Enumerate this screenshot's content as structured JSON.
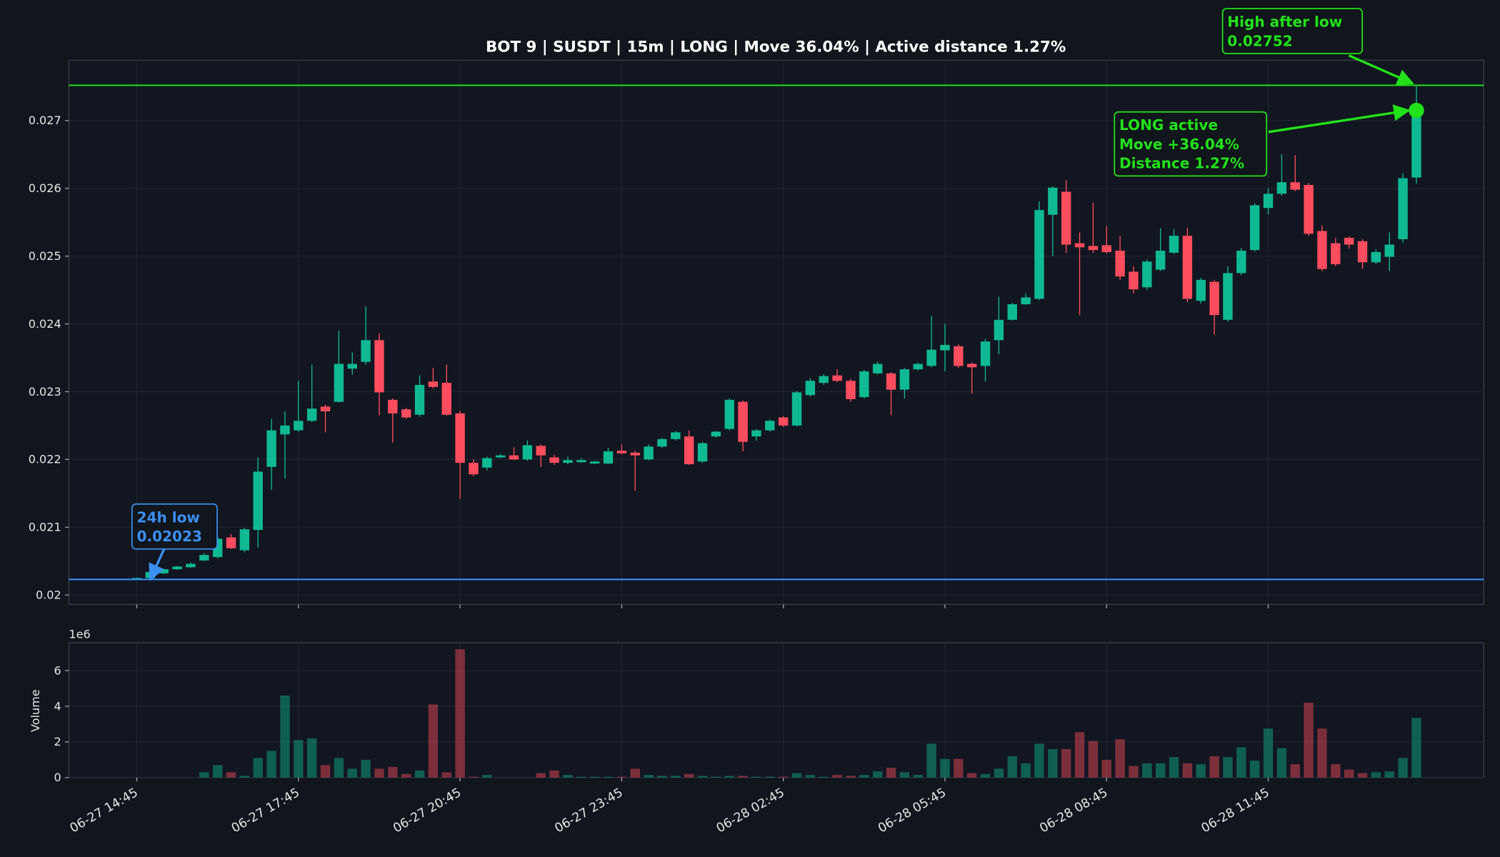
{
  "chart_data": {
    "type": "candlestick",
    "title": "BOT 9 | SUSDT | 15m | LONG | Move 36.04% | Active distance 1.27%",
    "x": [
      "06-27 14:45",
      null,
      null,
      null,
      null,
      null,
      null,
      null,
      null,
      null,
      null,
      null,
      "06-27 17:45",
      null,
      null,
      null,
      null,
      null,
      null,
      null,
      null,
      null,
      null,
      null,
      "06-27 20:45",
      null,
      null,
      null,
      null,
      null,
      null,
      null,
      null,
      null,
      null,
      null,
      "06-27 23:45",
      null,
      null,
      null,
      null,
      null,
      null,
      null,
      null,
      null,
      null,
      null,
      "06-28 02:45",
      null,
      null,
      null,
      null,
      null,
      null,
      null,
      null,
      null,
      null,
      null,
      "06-28 05:45",
      null,
      null,
      null,
      null,
      null,
      null,
      null,
      null,
      null,
      null,
      null,
      "06-28 08:45",
      null,
      null,
      null,
      null,
      null,
      null,
      null,
      null,
      null,
      null,
      null,
      "06-28 11:45",
      null,
      null,
      null,
      null,
      null,
      null,
      null,
      null,
      null,
      null,
      null
    ],
    "open": [
      0.02023,
      0.02025,
      0.02032,
      0.02038,
      0.02041,
      0.02051,
      0.02056,
      0.02085,
      0.02066,
      0.02096,
      0.02189,
      0.02237,
      0.02243,
      0.02257,
      0.02278,
      0.02285,
      0.02334,
      0.02344,
      0.02376,
      0.02288,
      0.02274,
      0.02266,
      0.02315,
      0.02313,
      0.02268,
      0.02195,
      0.02188,
      0.02203,
      0.02206,
      0.022,
      0.0222,
      0.02203,
      0.02195,
      0.02196,
      0.02194,
      0.02194,
      0.02213,
      0.0221,
      0.022,
      0.02219,
      0.0223,
      0.02234,
      0.02197,
      0.02234,
      0.02245,
      0.02285,
      0.02234,
      0.02243,
      0.02262,
      0.0225,
      0.02295,
      0.02313,
      0.02324,
      0.02316,
      0.02292,
      0.02327,
      0.02327,
      0.02303,
      0.02333,
      0.02338,
      0.02361,
      0.02367,
      0.02341,
      0.02338,
      0.02376,
      0.02406,
      0.02429,
      0.02437,
      0.02561,
      0.02595,
      0.02519,
      0.02515,
      0.02516,
      0.02508,
      0.02477,
      0.02454,
      0.0248,
      0.02505,
      0.0253,
      0.02434,
      0.02462,
      0.02406,
      0.02475,
      0.02509,
      0.02571,
      0.02592,
      0.02609,
      0.02605,
      0.02537,
      0.02519,
      0.02527,
      0.02522,
      0.02491,
      0.02499,
      0.02525,
      0.02616
    ],
    "high": [
      0.02026,
      0.02035,
      0.02039,
      0.02043,
      0.02048,
      0.02062,
      0.02086,
      0.0209,
      0.02099,
      0.02203,
      0.0226,
      0.02271,
      0.02316,
      0.0234,
      0.02281,
      0.0239,
      0.02358,
      0.02426,
      0.02386,
      0.0229,
      0.02276,
      0.02324,
      0.02335,
      0.0234,
      0.02272,
      0.022,
      0.02204,
      0.02208,
      0.02218,
      0.02228,
      0.02222,
      0.02207,
      0.02204,
      0.02202,
      0.02198,
      0.02217,
      0.02222,
      0.02213,
      0.02222,
      0.02232,
      0.02242,
      0.02243,
      0.02226,
      0.02242,
      0.0229,
      0.02287,
      0.02245,
      0.02259,
      0.02264,
      0.02301,
      0.0232,
      0.02326,
      0.02333,
      0.02319,
      0.02332,
      0.02344,
      0.02329,
      0.02335,
      0.02343,
      0.02412,
      0.024,
      0.0237,
      0.02343,
      0.02378,
      0.0244,
      0.02431,
      0.02445,
      0.02581,
      0.02603,
      0.02612,
      0.02535,
      0.02579,
      0.02544,
      0.0253,
      0.02485,
      0.02495,
      0.02541,
      0.0254,
      0.02542,
      0.02468,
      0.02465,
      0.02485,
      0.02512,
      0.02578,
      0.026,
      0.0265,
      0.02649,
      0.02608,
      0.02545,
      0.02527,
      0.02529,
      0.02525,
      0.0251,
      0.02535,
      0.02622,
      0.02752
    ],
    "low": [
      0.02023,
      0.02023,
      0.02031,
      0.02037,
      0.0204,
      0.0205,
      0.02054,
      0.02068,
      0.02063,
      0.0207,
      0.02155,
      0.02172,
      0.02241,
      0.02255,
      0.0224,
      0.02284,
      0.02325,
      0.0234,
      0.02265,
      0.02225,
      0.0226,
      0.02263,
      0.02305,
      0.02265,
      0.02142,
      0.02175,
      0.02184,
      0.02202,
      0.02199,
      0.02198,
      0.02189,
      0.02192,
      0.02193,
      0.02195,
      0.02193,
      0.02193,
      0.02208,
      0.02154,
      0.02199,
      0.02217,
      0.02228,
      0.02192,
      0.02195,
      0.02232,
      0.02243,
      0.02212,
      0.02228,
      0.02241,
      0.02248,
      0.02249,
      0.02293,
      0.0231,
      0.02314,
      0.02285,
      0.0229,
      0.02325,
      0.02265,
      0.0229,
      0.02331,
      0.02336,
      0.0233,
      0.02335,
      0.02297,
      0.02315,
      0.02355,
      0.02405,
      0.02428,
      0.02435,
      0.025,
      0.02505,
      0.02413,
      0.02505,
      0.02504,
      0.02465,
      0.02445,
      0.0245,
      0.02478,
      0.02503,
      0.02432,
      0.0243,
      0.02384,
      0.02403,
      0.02472,
      0.02507,
      0.02562,
      0.02589,
      0.02596,
      0.0253,
      0.02478,
      0.02485,
      0.02511,
      0.02481,
      0.02488,
      0.02478,
      0.0252,
      0.02607
    ],
    "close": [
      0.02025,
      0.02034,
      0.02038,
      0.02042,
      0.02046,
      0.02059,
      0.02083,
      0.02069,
      0.02097,
      0.02182,
      0.02243,
      0.0225,
      0.02257,
      0.02275,
      0.02271,
      0.02341,
      0.02341,
      0.02376,
      0.02299,
      0.02268,
      0.02262,
      0.0231,
      0.02307,
      0.02266,
      0.02195,
      0.02178,
      0.02202,
      0.02206,
      0.022,
      0.02221,
      0.02206,
      0.02195,
      0.02199,
      0.02199,
      0.02197,
      0.02212,
      0.02209,
      0.02206,
      0.02219,
      0.0223,
      0.0224,
      0.02193,
      0.02224,
      0.02241,
      0.02288,
      0.02226,
      0.02243,
      0.02257,
      0.0225,
      0.02299,
      0.02316,
      0.02323,
      0.02316,
      0.02289,
      0.0233,
      0.02341,
      0.02303,
      0.02333,
      0.02341,
      0.02362,
      0.02369,
      0.02338,
      0.02336,
      0.02374,
      0.02406,
      0.02429,
      0.02439,
      0.02568,
      0.02601,
      0.02517,
      0.02513,
      0.02509,
      0.02506,
      0.0247,
      0.02451,
      0.02492,
      0.02508,
      0.0253,
      0.02437,
      0.02465,
      0.02413,
      0.02475,
      0.02508,
      0.02575,
      0.02592,
      0.02609,
      0.02598,
      0.02533,
      0.02481,
      0.02488,
      0.02517,
      0.02491,
      0.02506,
      0.02517,
      0.02615,
      0.02715
    ],
    "volume": [
      0,
      0,
      0,
      0,
      0,
      0.3,
      0.7,
      0.3,
      0.1,
      1.1,
      1.5,
      4.6,
      2.1,
      2.2,
      0.7,
      1.1,
      0.5,
      1.0,
      0.5,
      0.6,
      0.2,
      0.4,
      4.1,
      0.3,
      7.2,
      0.05,
      0.15,
      0,
      0,
      0,
      0.25,
      0.4,
      0.15,
      0.05,
      0.05,
      0.05,
      0.05,
      0.5,
      0.15,
      0.1,
      0.1,
      0.2,
      0.1,
      0.05,
      0.1,
      0.1,
      0.05,
      0.05,
      0.05,
      0.25,
      0.15,
      0.05,
      0.15,
      0.1,
      0.15,
      0.35,
      0.55,
      0.3,
      0.15,
      1.9,
      1.05,
      1.05,
      0.25,
      0.2,
      0.5,
      1.2,
      0.8,
      1.9,
      1.6,
      1.6,
      2.55,
      2.05,
      1.0,
      2.15,
      0.65,
      0.8,
      0.8,
      1.15,
      0.8,
      0.75,
      1.2,
      1.15,
      1.7,
      0.95,
      2.75,
      1.65,
      0.75,
      4.2,
      2.75,
      0.75,
      0.45,
      0.25,
      0.3,
      0.35,
      1.1,
      3.35
    ],
    "up_color": "#0fb993",
    "down_color": "#ff4d5e",
    "ylim": [
      0.01986,
      0.02789
    ],
    "yticks": [
      0.02,
      0.021,
      0.022,
      0.023,
      0.024,
      0.025,
      0.026,
      0.027
    ],
    "volume_ylim": [
      0,
      7.56
    ],
    "volume_yticks": [
      0,
      2,
      4,
      6
    ],
    "volume_ylabel": "Volume",
    "volume_offset": "1e6",
    "grid": true,
    "hlines": [
      {
        "value": 0.02023,
        "color": "#3b8ff0"
      },
      {
        "value": 0.02752,
        "color": "#22d41c"
      }
    ],
    "signal_color": "#22e21a",
    "annotations": [
      {
        "lines": [
          "24h low",
          "0.02023"
        ],
        "color": "#3b8ff0"
      },
      {
        "lines": [
          "High after low",
          "0.02752"
        ],
        "color": "#22e21a"
      },
      {
        "lines": [
          "LONG active",
          "Move +36.04%",
          "Distance 1.27%"
        ],
        "color": "#22e21a"
      }
    ]
  }
}
